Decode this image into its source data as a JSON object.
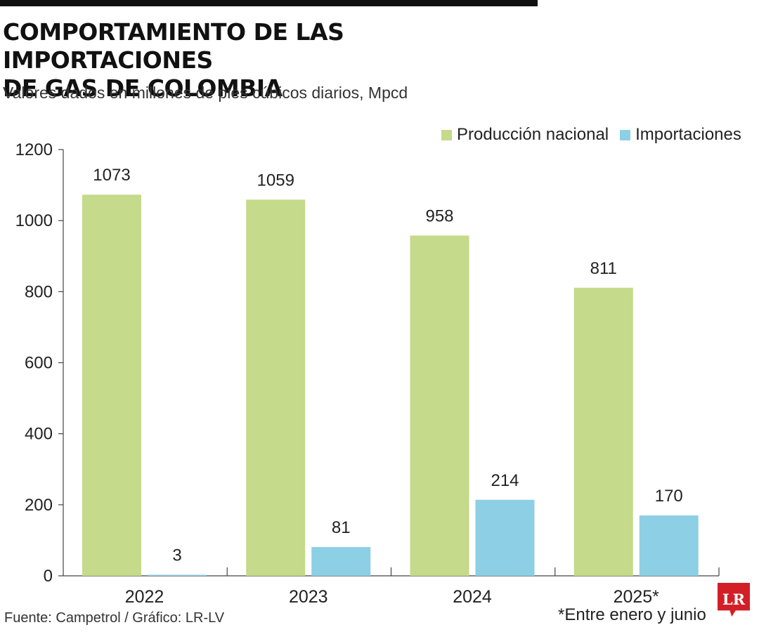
{
  "header": {
    "title_line1": "COMPORTAMIENTO DE LAS IMPORTACIONES",
    "title_line2": "DE GAS DE COLOMBIA",
    "subtitle": "Valores dados en millones de pies cúbicos diarios, Mpcd"
  },
  "legend": {
    "items": [
      {
        "label": "Producción nacional",
        "color": "#c5da8a"
      },
      {
        "label": "Importaciones",
        "color": "#8dcfe4"
      }
    ]
  },
  "chart_data": {
    "type": "bar",
    "title": "COMPORTAMIENTO DE LAS IMPORTACIONES DE GAS DE COLOMBIA",
    "subtitle": "Valores dados en millones de pies cúbicos diarios, Mpcd",
    "categories": [
      "2022",
      "2023",
      "2024",
      "2025*"
    ],
    "series": [
      {
        "name": "Producción nacional",
        "color": "#c5da8a",
        "values": [
          1073,
          1059,
          958,
          811
        ]
      },
      {
        "name": "Importaciones",
        "color": "#8dcfe4",
        "values": [
          3,
          81,
          214,
          170
        ]
      }
    ],
    "ylim": [
      0,
      1200
    ],
    "yticks": [
      0,
      200,
      400,
      600,
      800,
      1000,
      1200
    ],
    "grid": false,
    "legend_position": "top-right",
    "xlabel": "",
    "ylabel": ""
  },
  "footer": {
    "source": "Fuente: Campetrol / Gráfico: LR-LV",
    "note": "*Entre enero y junio",
    "logo_text": "LR"
  }
}
